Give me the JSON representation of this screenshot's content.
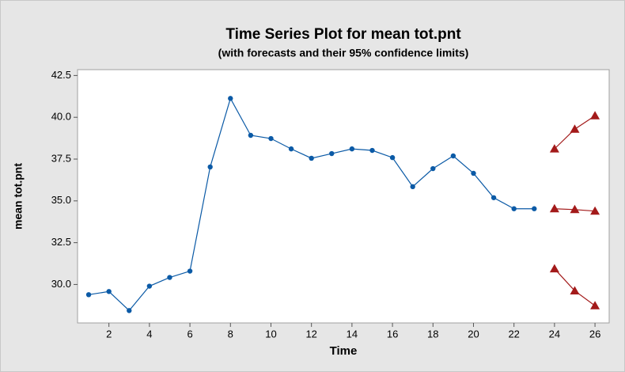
{
  "chart_data": {
    "type": "line",
    "title": "Time Series Plot for mean tot.pnt",
    "subtitle": "(with forecasts and their 95% confidence limits)",
    "x_label": "Time",
    "y_label": "mean tot.pnt",
    "xlim": [
      0.45,
      26.7
    ],
    "ylim": [
      27.7,
      42.85
    ],
    "xticks": [
      2,
      4,
      6,
      8,
      10,
      12,
      14,
      16,
      18,
      20,
      22,
      24,
      26
    ],
    "yticks": [
      {
        "value": 30,
        "label": "30.0"
      },
      32.5,
      {
        "value": 35,
        "label": "35.0"
      },
      37.5,
      {
        "value": 40,
        "label": "40.0"
      },
      42.5
    ],
    "grid": false,
    "series": [
      {
        "color": "#0b5aa6",
        "marker": "circle",
        "x": [
          1,
          2,
          3,
          4,
          5,
          6,
          7,
          8,
          9,
          10,
          11,
          12,
          13,
          14,
          15,
          16,
          17,
          18,
          19,
          20,
          21,
          22,
          23
        ],
        "values": [
          29.39,
          29.58,
          28.44,
          29.9,
          30.42,
          30.8,
          37.03,
          41.13,
          38.92,
          38.73,
          38.11,
          37.55,
          37.83,
          38.11,
          38.02,
          37.59,
          35.85,
          36.93,
          37.69,
          36.65,
          35.19,
          34.53,
          34.53
        ]
      },
      {
        "color": "#a31a1a",
        "marker": "triangle",
        "x": [
          24,
          25,
          26
        ],
        "values": [
          38.11,
          39.29,
          40.09
        ]
      },
      {
        "color": "#a31a1a",
        "marker": "triangle",
        "x": [
          24,
          25,
          26
        ],
        "values": [
          34.53,
          34.48,
          34.39
        ]
      },
      {
        "color": "#a31a1a",
        "marker": "triangle",
        "x": [
          24,
          25,
          26
        ],
        "values": [
          30.94,
          29.62,
          28.73
        ]
      }
    ]
  }
}
